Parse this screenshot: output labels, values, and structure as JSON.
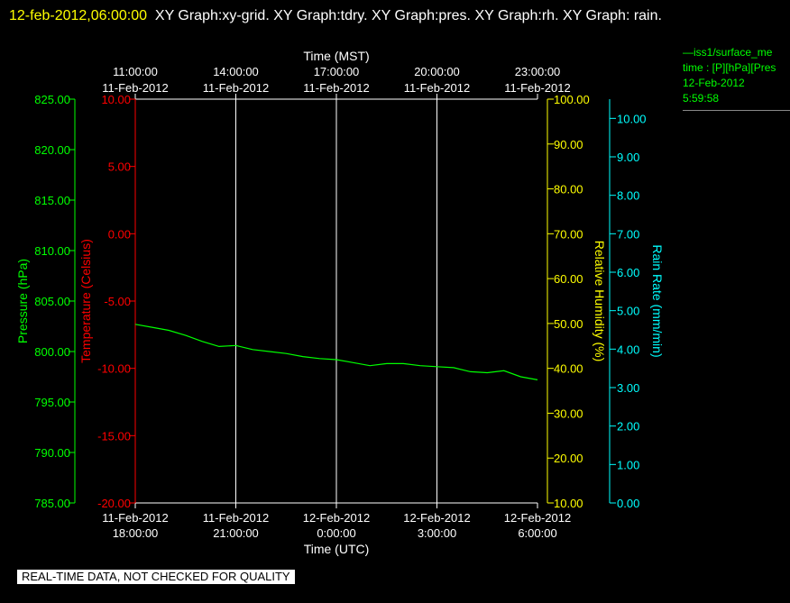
{
  "header": {
    "timestamp": "12-feb-2012,06:00:00",
    "graphs": "XY Graph:xy-grid.  XY Graph:tdry.  XY Graph:pres.  XY Graph:rh.  XY Graph: rain."
  },
  "legend": {
    "line1": "—iss1/surface_me",
    "line2": "time : [P][hPa][Pres",
    "line3": "12-Feb-2012",
    "line4": "5:59:58"
  },
  "notice": "REAL-TIME DATA, NOT CHECKED FOR QUALITY",
  "colors": {
    "pressure": "#00ff00",
    "temperature": "#ff0000",
    "humidity": "#ffff00",
    "rain": "#00ffff",
    "grid": "#ffffff"
  },
  "chart_data": {
    "type": "line",
    "grid": true,
    "x_axis_bottom": {
      "label": "Time (UTC)",
      "ticks": [
        {
          "date": "11-Feb-2012",
          "time": "18:00:00"
        },
        {
          "date": "11-Feb-2012",
          "time": "21:00:00"
        },
        {
          "date": "12-Feb-2012",
          "time": "0:00:00"
        },
        {
          "date": "12-Feb-2012",
          "time": "3:00:00"
        },
        {
          "date": "12-Feb-2012",
          "time": "6:00:00"
        }
      ],
      "range": [
        "2012-02-11 18:00:00",
        "2012-02-12 06:00:00"
      ]
    },
    "x_axis_top": {
      "label": "Time (MST)",
      "ticks": [
        {
          "time": "11:00:00",
          "date": "11-Feb-2012"
        },
        {
          "time": "14:00:00",
          "date": "11-Feb-2012"
        },
        {
          "time": "17:00:00",
          "date": "11-Feb-2012"
        },
        {
          "time": "20:00:00",
          "date": "11-Feb-2012"
        },
        {
          "time": "23:00:00",
          "date": "11-Feb-2012"
        }
      ]
    },
    "y_axes": {
      "pressure": {
        "label": "Pressure (hPa)",
        "range": [
          785,
          825
        ],
        "ticks": [
          "785.00",
          "790.00",
          "795.00",
          "800.00",
          "805.00",
          "810.00",
          "815.00",
          "820.00",
          "825.00"
        ]
      },
      "temperature": {
        "label": "Temperature (Celsius)",
        "range": [
          -20,
          10
        ],
        "ticks": [
          "-20.00",
          "-15.00",
          "-10.00",
          "-5.00",
          "0.00",
          "5.00",
          "10.00"
        ]
      },
      "humidity": {
        "label": "Relative Humidity (%)",
        "range": [
          10,
          100
        ],
        "ticks": [
          "10.00",
          "20.00",
          "30.00",
          "40.00",
          "50.00",
          "60.00",
          "70.00",
          "80.00",
          "90.00",
          "100.00"
        ]
      },
      "rain": {
        "label": "Rain Rate (mm/min)",
        "range": [
          0,
          10.5
        ],
        "ticks": [
          "0.00",
          "1.00",
          "2.00",
          "3.00",
          "4.00",
          "5.00",
          "6.00",
          "7.00",
          "8.00",
          "9.00",
          "10.00"
        ]
      }
    },
    "series": [
      {
        "axis": "pressure",
        "x": [
          "2012-02-11 18:00",
          "2012-02-11 18:30",
          "2012-02-11 19:00",
          "2012-02-11 19:30",
          "2012-02-11 20:00",
          "2012-02-11 20:30",
          "2012-02-11 21:00",
          "2012-02-11 21:30",
          "2012-02-11 22:00",
          "2012-02-11 22:30",
          "2012-02-11 23:00",
          "2012-02-11 23:30",
          "2012-02-12 00:00",
          "2012-02-12 00:30",
          "2012-02-12 01:00",
          "2012-02-12 01:30",
          "2012-02-12 02:00",
          "2012-02-12 02:30",
          "2012-02-12 03:00",
          "2012-02-12 03:30",
          "2012-02-12 04:00",
          "2012-02-12 04:30",
          "2012-02-12 05:00",
          "2012-02-12 05:30",
          "2012-02-12 06:00"
        ],
        "y": [
          802.7,
          802.4,
          802.1,
          801.6,
          801.0,
          800.5,
          800.6,
          800.2,
          800.0,
          799.8,
          799.5,
          799.3,
          799.2,
          798.9,
          798.6,
          798.8,
          798.8,
          798.6,
          798.5,
          798.4,
          798.0,
          797.9,
          798.1,
          797.5,
          797.2
        ]
      }
    ]
  }
}
